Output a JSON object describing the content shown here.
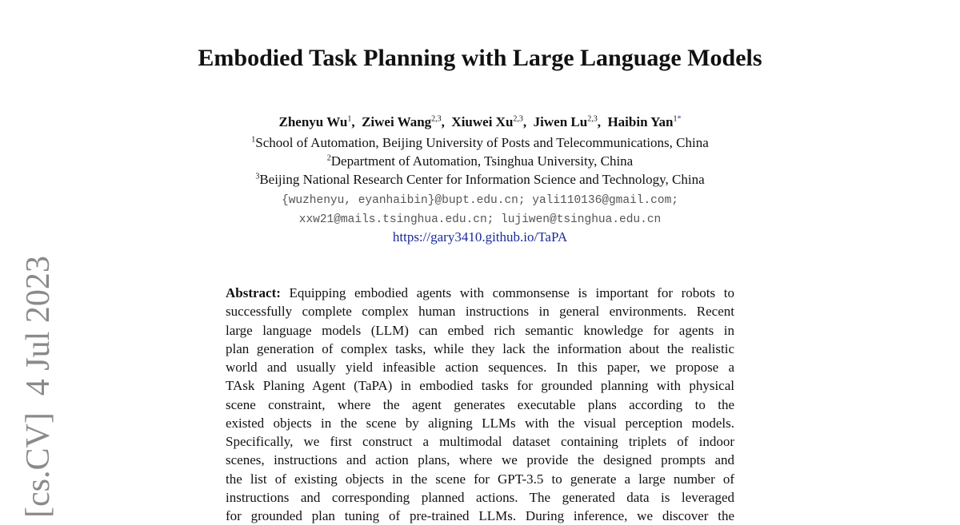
{
  "title": "Embodied Task Planning with Large Language Models",
  "authors": [
    {
      "name": "Zhenyu Wu",
      "sup": "1"
    },
    {
      "name": "Ziwei Wang",
      "sup": "2,3"
    },
    {
      "name": "Xiuwei Xu",
      "sup": "2,3"
    },
    {
      "name": "Jiwen Lu",
      "sup": "2,3"
    },
    {
      "name": "Haibin Yan",
      "sup": "1",
      "mark": "*"
    }
  ],
  "affiliations": [
    {
      "sup": "1",
      "text": "School of Automation, Beijing University of Posts and Telecommunications, China"
    },
    {
      "sup": "2",
      "text": "Department of Automation, Tsinghua University, China"
    },
    {
      "sup": "3",
      "text": "Beijing National Research Center for Information Science and Technology, China"
    }
  ],
  "emails": [
    "{wuzhenyu, eyanhaibin}@bupt.edu.cn; yali110136@gmail.com;",
    "xxw21@mails.tsinghua.edu.cn; lujiwen@tsinghua.edu.cn"
  ],
  "url": "https://gary3410.github.io/TaPA",
  "abstract": {
    "label": "Abstract:",
    "lines": [
      " Equipping embodied agents with commonsense is important for robots to",
      "successfully complete complex human instructions in general environments. Recent",
      "large language models (LLM) can embed rich semantic knowledge for agents in",
      "plan generation of complex tasks, while they lack the information about the realistic",
      "world and usually yield infeasible action sequences. In this paper, we propose a",
      "TAsk Planing Agent (TaPA) in embodied tasks for grounded planning with physical",
      "scene constraint, where the agent generates executable plans according to the",
      "existed objects in the scene by aligning LLMs with the visual perception models.",
      "Specifically, we first construct a multimodal dataset containing triplets of indoor",
      "scenes, instructions and action plans, where we provide the designed prompts and",
      "the list of existing objects in the scene for GPT-3.5 to generate a large number of",
      "instructions and corresponding planned actions. The generated data is leveraged",
      "for grounded plan tuning of pre-trained LLMs. During inference, we discover the"
    ]
  },
  "arxiv_stamp": "[cs.CV]  4 Jul 2023"
}
